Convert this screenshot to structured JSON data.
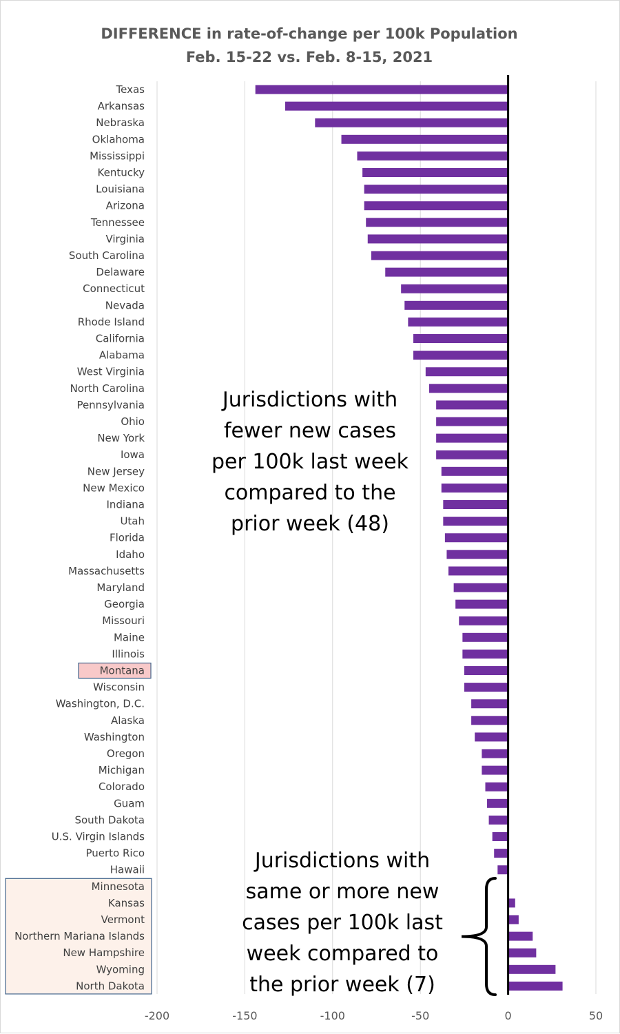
{
  "chart_data": {
    "type": "bar",
    "orientation": "horizontal",
    "title": "DIFFERENCE in rate-of-change per 100k Population",
    "subtitle": "Feb. 15-22 vs. Feb. 8-15, 2021",
    "xlabel": "",
    "ylabel": "",
    "xlim": [
      -200,
      50
    ],
    "xticks": [
      -200,
      -150,
      -100,
      -50,
      0,
      50
    ],
    "grid": "vertical",
    "bar_color": "#7030a0",
    "highlight_color": "#f8c9c9",
    "group_highlight_color": "#fdf1ea",
    "box_border_color": "#41648c",
    "categories": [
      "Texas",
      "Arkansas",
      "Nebraska",
      "Oklahoma",
      "Mississippi",
      "Kentucky",
      "Louisiana",
      "Arizona",
      "Tennessee",
      "Virginia",
      "South Carolina",
      "Delaware",
      "Connecticut",
      "Nevada",
      "Rhode Island",
      "California",
      "Alabama",
      "West Virginia",
      "North Carolina",
      "Pennsylvania",
      "Ohio",
      "New York",
      "Iowa",
      "New Jersey",
      "New Mexico",
      "Indiana",
      "Utah",
      "Florida",
      "Idaho",
      "Massachusetts",
      "Maryland",
      "Georgia",
      "Missouri",
      "Maine",
      "Illinois",
      "Montana",
      "Wisconsin",
      "Washington, D.C.",
      "Alaska",
      "Washington",
      "Oregon",
      "Michigan",
      "Colorado",
      "Guam",
      "South Dakota",
      "U.S. Virgin Islands",
      "Puerto Rico",
      "Hawaii",
      "Minnesota",
      "Kansas",
      "Vermont",
      "Northern Mariana Islands",
      "New Hampshire",
      "Wyoming",
      "North Dakota"
    ],
    "values": [
      -144,
      -127,
      -110,
      -95,
      -86,
      -83,
      -82,
      -82,
      -81,
      -80,
      -78,
      -70,
      -61,
      -59,
      -57,
      -54,
      -54,
      -47,
      -45,
      -41,
      -41,
      -41,
      -41,
      -38,
      -38,
      -37,
      -37,
      -36,
      -35,
      -34,
      -31,
      -30,
      -28,
      -26,
      -26,
      -25,
      -25,
      -21,
      -21,
      -19,
      -15,
      -15,
      -13,
      -12,
      -11,
      -9,
      -8,
      -6,
      0,
      4,
      6,
      14,
      16,
      27,
      31
    ],
    "highlighted_category": "Montana",
    "highlighted_group": [
      "Minnesota",
      "Kansas",
      "Vermont",
      "Northern Mariana Islands",
      "New Hampshire",
      "Wyoming",
      "North Dakota"
    ],
    "annotations": [
      {
        "name": "fewer",
        "lines": [
          "Jurisdictions with",
          "fewer new cases",
          "per 100k last week",
          "compared to the",
          "prior week (48)"
        ]
      },
      {
        "name": "more",
        "lines": [
          "Jurisdictions with",
          "same or more new",
          "cases per 100k last",
          "week compared to",
          "the prior week (7)"
        ]
      }
    ]
  }
}
